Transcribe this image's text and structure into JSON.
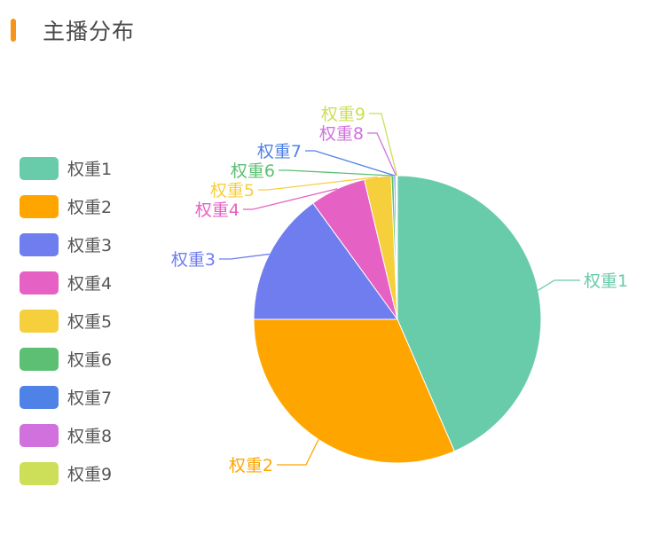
{
  "header": {
    "title": "主播分布",
    "accent_color": "#f7941d"
  },
  "chart_data": {
    "type": "pie",
    "title": "主播分布",
    "legend_position": "left",
    "categories": [
      "权重1",
      "权重2",
      "权重3",
      "权重4",
      "权重5",
      "权重6",
      "权重7",
      "权重8",
      "权重9"
    ],
    "values": [
      43.5,
      31.5,
      15.0,
      6.3,
      3.0,
      0.3,
      0.2,
      0.1,
      0.1
    ],
    "colors": [
      "#68cba9",
      "#ffa500",
      "#6f7dee",
      "#e661c4",
      "#f6cf3d",
      "#5cbf73",
      "#4f82e6",
      "#d171de",
      "#cdde58"
    ]
  }
}
